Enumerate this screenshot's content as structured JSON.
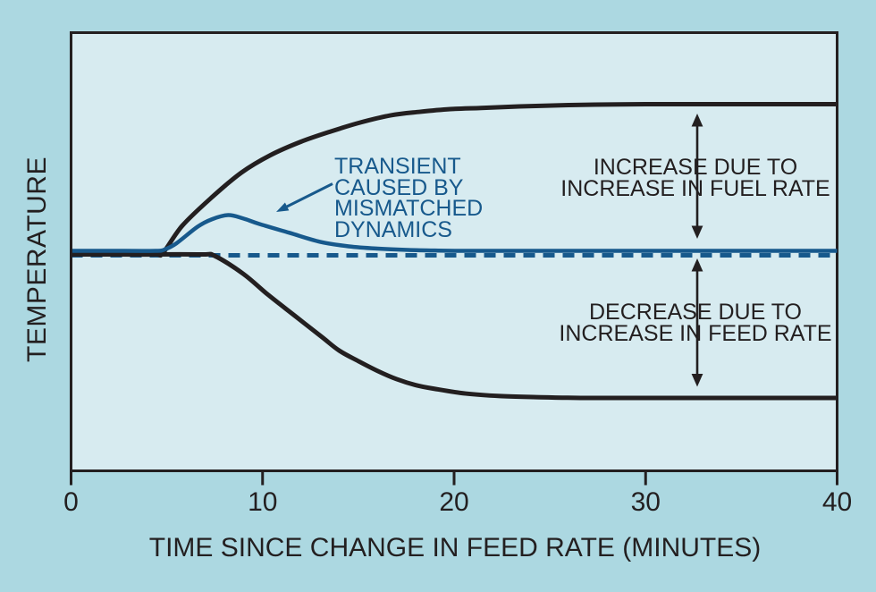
{
  "figure": {
    "background": "#ACD8E1",
    "plot_background": "#D7EBF0",
    "ink": "#231F20",
    "accent_blue": "#17598C"
  },
  "chart_data": {
    "type": "line",
    "title": "",
    "xlabel": "TIME SINCE CHANGE IN FEED RATE (MINUTES)",
    "ylabel": "TEMPERATURE",
    "xlim": [
      0,
      40
    ],
    "ylim_relative_temperature": [
      -1.2,
      1.5
    ],
    "x_ticks": [
      "0",
      "10",
      "20",
      "30",
      "40"
    ],
    "x_tick_values": [
      0,
      10,
      20,
      30,
      40
    ],
    "grid": false,
    "legend": "none",
    "y_axis_numeric_labels": "none",
    "series": [
      {
        "id": "original-temperature-baseline",
        "color": "blue",
        "dash": true,
        "width": 5,
        "y_offset": 1,
        "points": [
          [
            0,
            0
          ],
          [
            40,
            0
          ]
        ]
      },
      {
        "id": "fuel-rate-increase-response",
        "color": "ink",
        "dash": false,
        "width": 5,
        "y_offset": 0,
        "points": [
          [
            0,
            0
          ],
          [
            2.5,
            0
          ],
          [
            4.4,
            0
          ],
          [
            4.8,
            0.01
          ],
          [
            5.8,
            0.19
          ],
          [
            7.35,
            0.38
          ],
          [
            8.9,
            0.545
          ],
          [
            10.4,
            0.66
          ],
          [
            12,
            0.75
          ],
          [
            13.6,
            0.82
          ],
          [
            15.1,
            0.878
          ],
          [
            16.7,
            0.926
          ],
          [
            18.2,
            0.949
          ],
          [
            19.8,
            0.967
          ],
          [
            21.4,
            0.975
          ],
          [
            23.4,
            0.985
          ],
          [
            26,
            0.994
          ],
          [
            28,
            0.998
          ],
          [
            30,
            1
          ],
          [
            34,
            1
          ],
          [
            37,
            1
          ],
          [
            40,
            1
          ]
        ]
      },
      {
        "id": "feed-rate-increase-response",
        "color": "ink",
        "dash": false,
        "width": 5,
        "y_offset": 0,
        "points": [
          [
            0,
            0
          ],
          [
            3,
            0
          ],
          [
            6.8,
            0
          ],
          [
            7.5,
            -0.01
          ],
          [
            9,
            -0.13
          ],
          [
            10.3,
            -0.27
          ],
          [
            11.7,
            -0.41
          ],
          [
            13.1,
            -0.55
          ],
          [
            14,
            -0.64
          ],
          [
            15,
            -0.71
          ],
          [
            16,
            -0.775
          ],
          [
            17,
            -0.83
          ],
          [
            18,
            -0.87
          ],
          [
            19,
            -0.895
          ],
          [
            20.6,
            -0.926
          ],
          [
            22.4,
            -0.943
          ],
          [
            24.3,
            -0.95
          ],
          [
            26.6,
            -0.955
          ],
          [
            30,
            -0.955
          ],
          [
            34,
            -0.955
          ],
          [
            37,
            -0.955
          ],
          [
            40,
            -0.955
          ]
        ]
      },
      {
        "id": "transient-mismatched-dynamics",
        "color": "blue",
        "dash": false,
        "width": 4.5,
        "y_offset": -4,
        "points": [
          [
            0,
            0
          ],
          [
            2,
            0
          ],
          [
            4.4,
            0
          ],
          [
            4.9,
            0.01
          ],
          [
            5.5,
            0.05
          ],
          [
            6.6,
            0.16
          ],
          [
            7.35,
            0.21
          ],
          [
            8.2,
            0.238
          ],
          [
            9,
            0.215
          ],
          [
            9.8,
            0.18
          ],
          [
            11.4,
            0.12
          ],
          [
            13,
            0.06
          ],
          [
            14.5,
            0.03
          ],
          [
            16,
            0.015
          ],
          [
            17.6,
            0.006
          ],
          [
            19,
            0.002
          ],
          [
            20.5,
            0
          ],
          [
            24,
            0
          ],
          [
            28,
            0
          ],
          [
            32,
            0
          ],
          [
            36,
            0
          ],
          [
            40,
            0
          ]
        ]
      }
    ],
    "annotations": {
      "transient_callout": {
        "lines": [
          "TRANSIENT",
          "CAUSED BY",
          "MISMATCHED",
          "DYNAMICS"
        ]
      },
      "fuel_increase": {
        "lines": [
          "INCREASE DUE TO",
          "INCREASE IN FUEL RATE"
        ]
      },
      "feed_decrease": {
        "lines": [
          "DECREASE DUE TO",
          "INCREASE IN FEED RATE"
        ]
      }
    }
  }
}
